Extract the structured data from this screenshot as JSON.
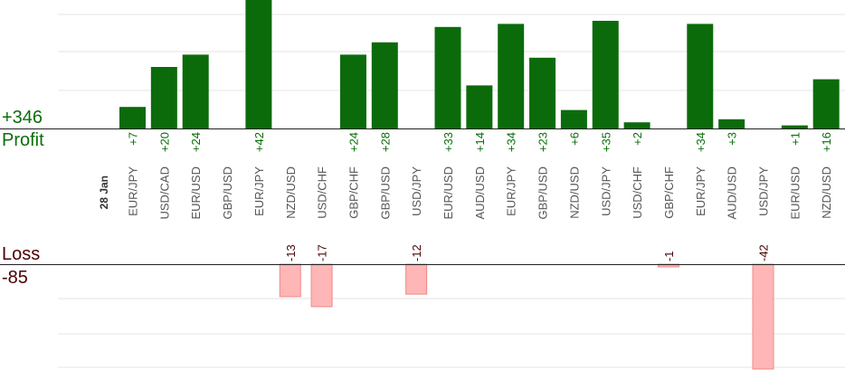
{
  "summary": {
    "profit_total": "+346",
    "profit_label": "Profit",
    "loss_label": "Loss",
    "loss_total": "-85"
  },
  "colors": {
    "profit_bar": "#0b6b0b",
    "loss_bar": "#ffb6b6",
    "profit_text": "#0a6e0a",
    "loss_text": "#4a0000"
  },
  "chart_data": {
    "type": "bar",
    "date_label": "28 Jan",
    "categories": [
      "EUR/JPY",
      "USD/CAD",
      "EUR/USD",
      "GBP/USD",
      "EUR/JPY",
      "NZD/USD",
      "USD/CHF",
      "GBP/CHF",
      "GBP/USD",
      "USD/JPY",
      "EUR/USD",
      "AUD/USD",
      "EUR/JPY",
      "GBP/USD",
      "NZD/USD",
      "USD/JPY",
      "USD/CHF",
      "GBP/CHF",
      "EUR/JPY",
      "AUD/USD",
      "USD/JPY",
      "EUR/USD",
      "NZD/USD"
    ],
    "series": [
      {
        "values": [
          7,
          20,
          24,
          0,
          42,
          -13,
          -17,
          24,
          28,
          -12,
          33,
          14,
          34,
          23,
          6,
          35,
          2,
          -1,
          34,
          3,
          -42,
          1,
          16
        ]
      }
    ],
    "value_labels": [
      "+7",
      "+20",
      "+24",
      "",
      "+42",
      "-13",
      "-17",
      "+24",
      "+28",
      "-12",
      "+33",
      "+14",
      "+34",
      "+23",
      "+6",
      "+35",
      "+2",
      "-1",
      "+34",
      "+3",
      "-42",
      "+1",
      "+16"
    ],
    "grid": true
  }
}
